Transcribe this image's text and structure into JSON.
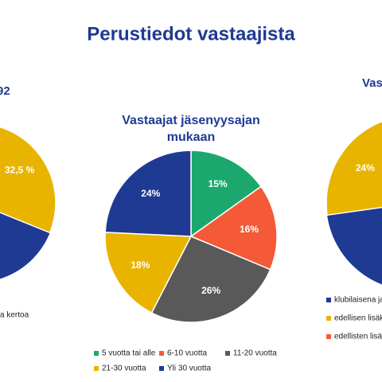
{
  "title": "Perustiedot vastaajista",
  "chart_data": [
    {
      "type": "pie",
      "title": "92",
      "values": [
        32.5
      ],
      "value_labels": [
        "32,5 %"
      ],
      "colors": [
        "#e8b400"
      ],
      "legend": [
        "a kertoa"
      ]
    },
    {
      "type": "pie",
      "title": "Vastaajat jäsenyysajan mukaan",
      "categories": [
        "5 vuotta tai alle",
        "6-10 vuotta",
        "11-20 vuotta",
        "21-30 vuotta",
        "Yli 30 vuotta"
      ],
      "values": [
        15,
        16,
        26,
        18,
        24
      ],
      "value_labels": [
        "15%",
        "16%",
        "26%",
        "18%",
        "24%"
      ],
      "colors": [
        "#1aa86e",
        "#f45a37",
        "#595959",
        "#e8b400",
        "#1f3a93"
      ]
    },
    {
      "type": "pie",
      "title": "Vas",
      "values": [
        24
      ],
      "value_labels": [
        "24%"
      ],
      "colors": [
        "#e8b400"
      ],
      "legend": [
        "klubilaisena ja",
        "edellisen lisäk",
        "edellisten lisä"
      ],
      "legend_colors": [
        "#1f3a93",
        "#e8b400",
        "#f45a37"
      ]
    }
  ]
}
